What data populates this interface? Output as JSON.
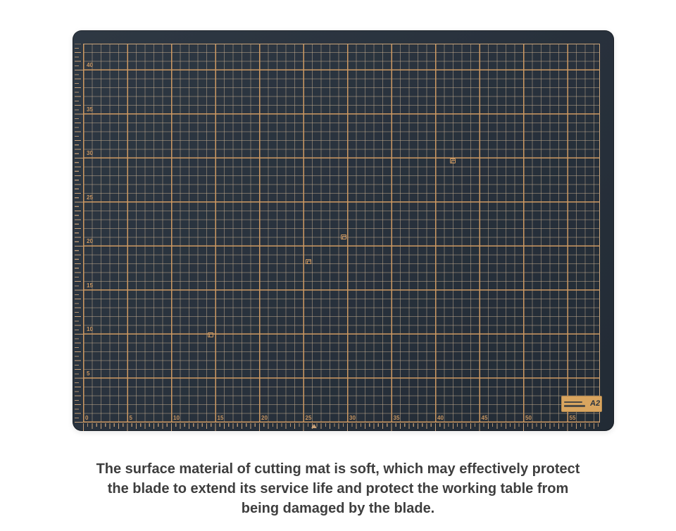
{
  "product_photo": {
    "item": "cutting mat",
    "grid_unit_cm": 1,
    "grid_x_labels": [
      "0",
      "5",
      "10",
      "15",
      "20",
      "25",
      "30",
      "35",
      "40",
      "45",
      "50",
      "55"
    ],
    "grid_y_labels": [
      "5",
      "10",
      "15",
      "20",
      "25",
      "30",
      "35",
      "40"
    ],
    "plate_size_label": "A2",
    "markers_cm": [
      {
        "x": 42.0,
        "y": 29.8
      },
      {
        "x": 29.6,
        "y": 21.1
      },
      {
        "x": 25.6,
        "y": 18.3
      },
      {
        "x": 14.5,
        "y": 10.0
      }
    ],
    "center_mark_x_cm": 26.2,
    "colors": {
      "mat_background": "#28313c",
      "grid_minor_line": "rgba(198,174,144,0.50)",
      "grid_major_line": "#cf9a62",
      "ruler_tick": "#c9a178",
      "label_plate": "#d9a55f",
      "plate_text": "#2c343f",
      "caption_text": "#3e3e3e"
    }
  },
  "caption": {
    "lines": [
      "The surface material of cutting mat is soft, which may effectively protect",
      "the blade to extend its service life and protect the working table from",
      "being damaged by the blade."
    ]
  }
}
